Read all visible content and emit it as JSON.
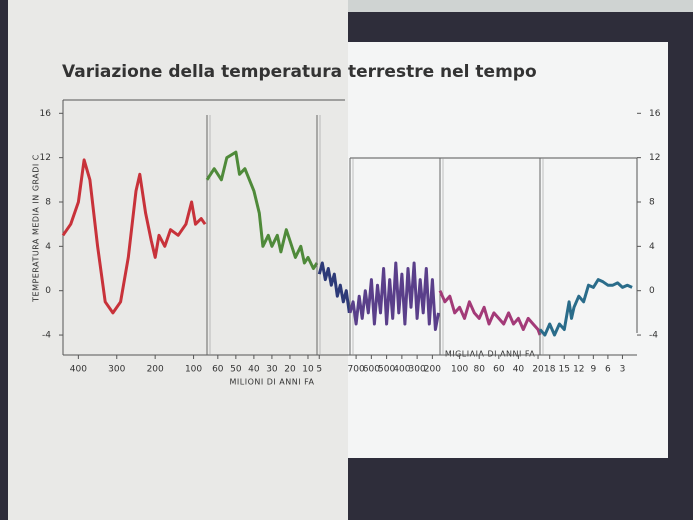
{
  "chart_data": {
    "type": "line",
    "title": "Variazione della temperatura terrestre nel tempo",
    "y_label": "TEMPERATURA MEDIA IN GRADI C",
    "ylim": [
      -5.8,
      17.2
    ],
    "yticks": [
      16,
      12,
      8,
      4,
      0,
      -4
    ],
    "x_labels": [
      "MILIONI DI ANNI FA",
      "MIGLIAIA DI ANNI FA"
    ],
    "panels": [
      {
        "xlim": [
          440,
          65
        ],
        "xticks": [
          400,
          300,
          200,
          100
        ],
        "series": [
          {
            "color": "#c8323a",
            "x": [
              440,
              420,
              400,
              385,
              370,
              350,
              330,
              310,
              290,
              270,
              250,
              240,
              225,
              210,
              200,
              190,
              175,
              160,
              140,
              120,
              105,
              95,
              80,
              70
            ],
            "values": [
              5,
              6,
              8,
              11.8,
              10,
              4,
              -1,
              -2,
              -1,
              3,
              9,
              10.5,
              7,
              4.5,
              3,
              5,
              4,
              5.5,
              5,
              6,
              8,
              6,
              6.5,
              6
            ]
          }
        ]
      },
      {
        "xlim": [
          66,
          5
        ],
        "xticks": [
          60,
          50,
          40,
          30,
          20,
          10
        ],
        "series": [
          {
            "color": "#4f8a3a",
            "x": [
              66,
              62,
              58,
              55,
              50,
              48,
              45,
              40,
              37,
              35,
              32,
              30,
              27,
              25,
              22,
              20,
              17,
              14,
              12,
              10,
              7,
              5
            ],
            "values": [
              10,
              11,
              10,
              12,
              12.5,
              10.5,
              11,
              9,
              7,
              4,
              5,
              4,
              5,
              3.5,
              5.5,
              4.5,
              3,
              4,
              2.5,
              3,
              2,
              2.5
            ]
          }
        ]
      },
      {
        "xlim": [
          5.3,
          0.9
        ],
        "xticks": [
          5
        ],
        "series": [
          {
            "color": "#2d3a78",
            "x": [
              5,
              4.6,
              4.2,
              3.8,
              3.4,
              3,
              2.6,
              2.2,
              1.8,
              1.4,
              1
            ],
            "values": [
              1.5,
              2.5,
              1,
              2,
              0.5,
              1.5,
              -0.5,
              0.5,
              -1,
              0,
              -2
            ]
          }
        ]
      },
      {
        "xlim": [
          740,
          150
        ],
        "xticks": [
          700,
          600,
          500,
          400,
          300,
          200
        ],
        "series": [
          {
            "color": "#5a3f8a",
            "x": [
              740,
              720,
              700,
              680,
              660,
              640,
              620,
              600,
              580,
              560,
              540,
              520,
              500,
              480,
              460,
              440,
              420,
              400,
              380,
              360,
              340,
              320,
              300,
              280,
              260,
              240,
              220,
              200,
              180,
              160
            ],
            "values": [
              -2,
              -1,
              -3,
              -0.5,
              -2.5,
              0,
              -2,
              1,
              -3,
              0.5,
              -2,
              2,
              -3,
              1,
              -2.5,
              2.5,
              -2,
              1.5,
              -3,
              2,
              -1.5,
              2.5,
              -2.5,
              1,
              -2,
              2,
              -3,
              1,
              -3.5,
              -2
            ]
          }
        ]
      },
      {
        "xlim": [
          120,
          18
        ],
        "xticks": [
          100,
          80,
          60,
          40,
          20
        ],
        "series": [
          {
            "color": "#a33a78",
            "x": [
              120,
              115,
              110,
              105,
              100,
              95,
              90,
              85,
              80,
              75,
              70,
              65,
              60,
              55,
              50,
              45,
              40,
              35,
              30,
              25,
              20,
              18
            ],
            "values": [
              0,
              -1,
              -0.5,
              -2,
              -1.5,
              -2.5,
              -1,
              -2,
              -2.5,
              -1.5,
              -3,
              -2,
              -2.5,
              -3,
              -2,
              -3,
              -2.5,
              -3.5,
              -2.5,
              -3,
              -3.5,
              -4
            ]
          }
        ]
      },
      {
        "xlim": [
          20,
          0
        ],
        "xticks": [
          18,
          15,
          12,
          9,
          6,
          3
        ],
        "series": [
          {
            "color": "#2a6c8a",
            "x": [
              20,
              19,
              18,
              17,
              16,
              15,
              14,
              13.5,
              13,
              12,
              11,
              10,
              9,
              8,
              7,
              6,
              5,
              4,
              3,
              2,
              1
            ],
            "values": [
              -3.5,
              -4,
              -3,
              -4,
              -3,
              -3.5,
              -1,
              -2.5,
              -1.5,
              -0.5,
              -1,
              0.5,
              0.3,
              1,
              0.8,
              0.5,
              0.5,
              0.7,
              0.3,
              0.5,
              0.3
            ]
          }
        ]
      }
    ]
  }
}
